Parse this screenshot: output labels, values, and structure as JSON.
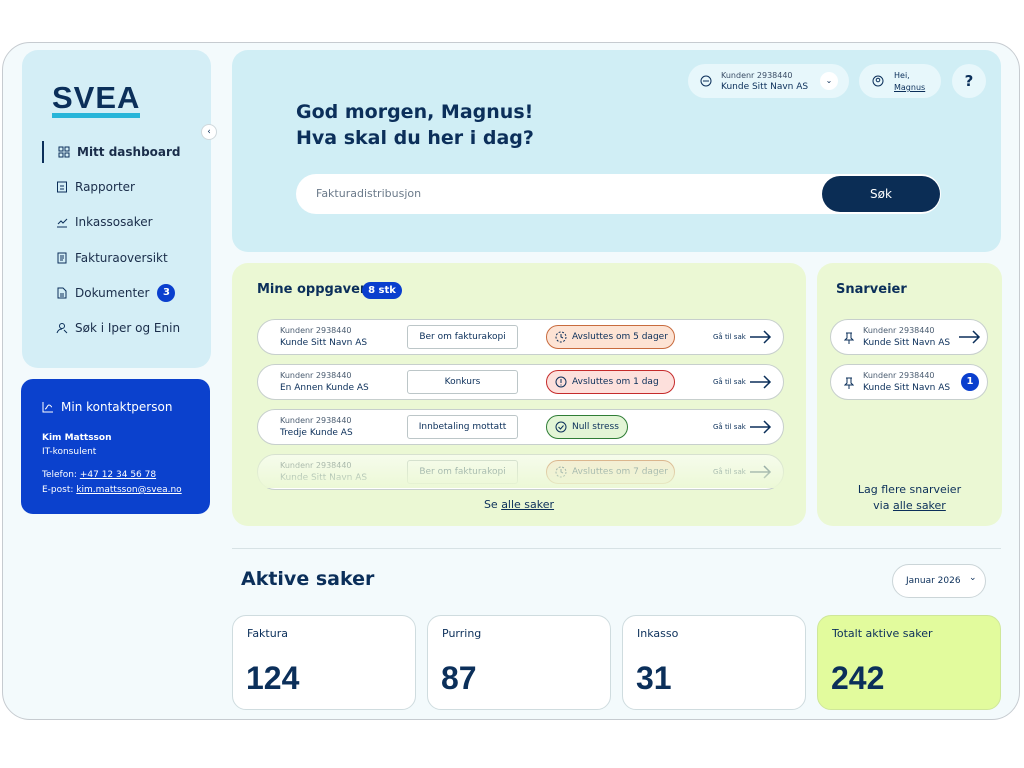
{
  "sidebar": {
    "logo": "SVEA",
    "nav": [
      {
        "label": "Mitt dashboard"
      },
      {
        "label": "Rapporter"
      },
      {
        "label": "Inkassosaker"
      },
      {
        "label": "Fakturaoversikt"
      },
      {
        "label": "Dokumenter",
        "badge": 3
      },
      {
        "label": "Søk i Iper og Enin"
      }
    ]
  },
  "contact": {
    "title": "Min kontaktperson",
    "name": "Kim Mattsson",
    "role": "IT-konsulent",
    "phone_label": "Telefon:",
    "phone": "+47 12 34 56 78",
    "email_label": "E-post:",
    "email": "kim.mattsson@svea.no"
  },
  "header": {
    "account_label": "Kundenr 2938440",
    "account_name": "Kunde Sitt Navn AS",
    "hi": "Hei,",
    "user": "Magnus",
    "help": "?",
    "greeting": [
      "God morgen, Magnus!",
      "Hva skal du her i dag?"
    ],
    "search_placeholder": "Fakturadistribusjon",
    "search_button": "Søk"
  },
  "tasks": {
    "title": "Mine oppgaver",
    "count": "8 stk",
    "rows": [
      {
        "id": "Kundenr 2938440",
        "name": "Kunde Sitt Navn AS",
        "type": "Ber om fakturakopi",
        "status": "Avsluttes om 5 dager",
        "action": "Gå til sak"
      },
      {
        "id": "Kundenr 2938440",
        "name": "En Annen Kunde AS",
        "type": "Konkurs",
        "status": "Avsluttes om 1 dag",
        "action": "Gå til sak"
      },
      {
        "id": "Kundenr 2938440",
        "name": "Tredje Kunde AS",
        "type": "Innbetaling mottatt",
        "status": "Null stress",
        "action": "Gå til sak"
      },
      {
        "id": "Kundenr 2938440",
        "name": "Kunde Sitt Navn AS",
        "type": "Ber om fakturakopi",
        "status": "Avsluttes om 7 dager",
        "action": "Gå til sak"
      }
    ],
    "footer_prefix": "Se",
    "footer_link": "alle saker"
  },
  "shortcuts": {
    "title": "Snarveier",
    "rows": [
      {
        "id": "Kundenr 2938440",
        "name": "Kunde Sitt Navn AS"
      },
      {
        "id": "Kundenr 2938440",
        "name": "Kunde Sitt Navn AS",
        "badge": 1
      }
    ],
    "footer_line1": "Lag flere snarveier",
    "footer_prefix": "via",
    "footer_link": "alle saker"
  },
  "active": {
    "title": "Aktive saker",
    "period": "Januar 2026",
    "cards": [
      {
        "label": "Faktura",
        "value": 124
      },
      {
        "label": "Purring",
        "value": 87
      },
      {
        "label": "Inkasso",
        "value": 31
      },
      {
        "label": "Totalt aktive saker",
        "value": 242
      }
    ]
  }
}
